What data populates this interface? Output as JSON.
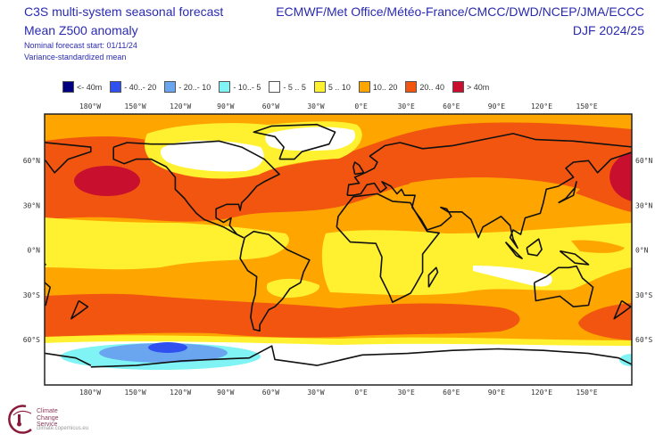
{
  "header": {
    "title": "C3S multi-system seasonal forecast",
    "subtitle": "Mean Z500 anomaly",
    "forecast_start": "Nominal forecast start: 01/11/24",
    "method": "Variance-standardized mean",
    "agencies": "ECMWF/Met Office/Météo-France/CMCC/DWD/NCEP/JMA/ECCC",
    "period": "DJF 2024/25"
  },
  "legend": [
    {
      "label": "<- 40m",
      "color": "#000080"
    },
    {
      "label": "- 40..- 20",
      "color": "#3050f0"
    },
    {
      "label": "- 20..- 10",
      "color": "#6aa6f0"
    },
    {
      "label": "- 10..- 5",
      "color": "#80f4f4"
    },
    {
      "label": "- 5 .. 5",
      "color": "#ffffff"
    },
    {
      "label": "5 .. 10",
      "color": "#fff030"
    },
    {
      "label": "10.. 20",
      "color": "#ffa500"
    },
    {
      "label": "20.. 40",
      "color": "#f25510"
    },
    {
      "label": ">  40m",
      "color": "#c8102e"
    }
  ],
  "axes": {
    "lon_ticks": [
      "180°W",
      "150°W",
      "120°W",
      "90°W",
      "60°W",
      "30°W",
      "0°E",
      "30°E",
      "60°E",
      "90°E",
      "120°E",
      "150°E"
    ],
    "lat_ticks_left": [
      "60°N",
      "30°N",
      "0°N",
      "30°S",
      "60°S"
    ],
    "lat_ticks_right": [
      "60°N",
      "30°N",
      "0°N",
      "30°S",
      "60°S"
    ]
  },
  "logo": {
    "line1": "Climate",
    "line2": "Change Service",
    "url": "climate.copernicus.eu"
  }
}
